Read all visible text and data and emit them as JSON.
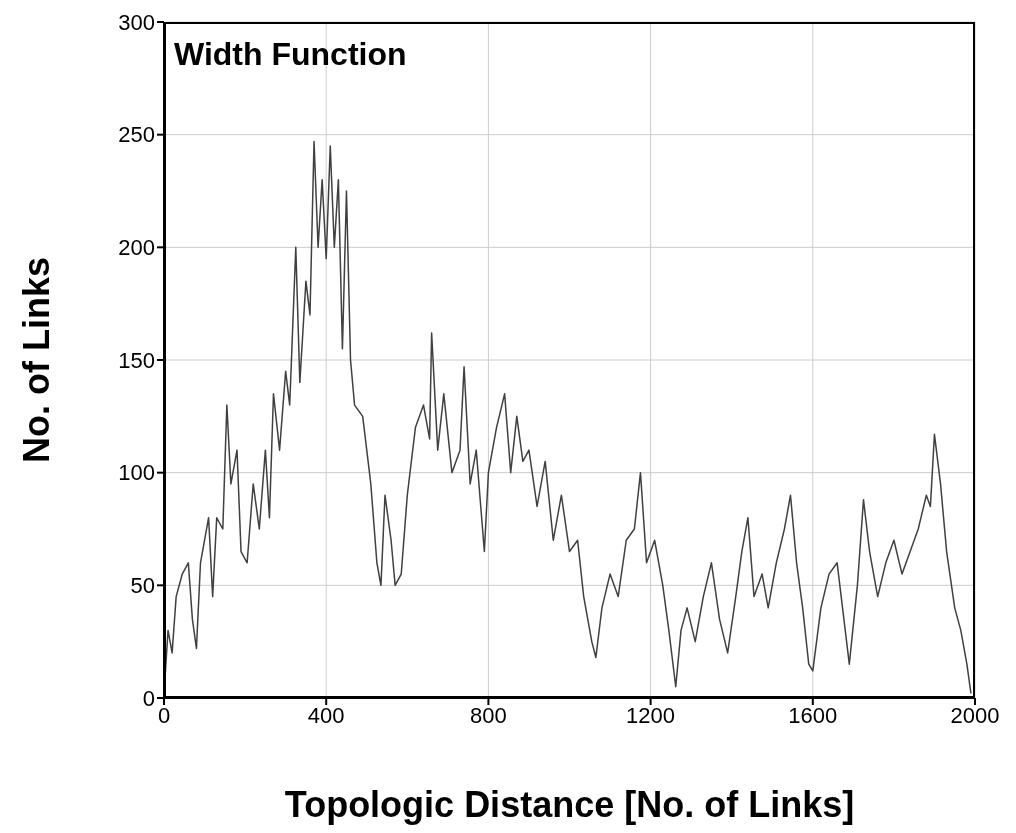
{
  "chart_data": {
    "type": "line",
    "title": "Width Function",
    "xlabel": "Topologic Distance [No. of Links]",
    "ylabel": "No. of Links",
    "xlim": [
      0,
      2000
    ],
    "ylim": [
      0,
      300
    ],
    "xticks": [
      0,
      400,
      800,
      1200,
      1600,
      2000
    ],
    "yticks": [
      0,
      50,
      100,
      150,
      200,
      250,
      300
    ],
    "grid": true,
    "legend": false,
    "marker": "none",
    "line_style": "solid",
    "x": [
      0,
      10,
      20,
      30,
      45,
      60,
      70,
      80,
      90,
      110,
      120,
      130,
      145,
      155,
      165,
      180,
      190,
      205,
      220,
      235,
      250,
      260,
      270,
      285,
      300,
      310,
      325,
      335,
      350,
      360,
      370,
      380,
      390,
      400,
      410,
      420,
      430,
      440,
      450,
      460,
      470,
      490,
      510,
      525,
      535,
      545,
      560,
      570,
      585,
      600,
      620,
      640,
      655,
      660,
      675,
      690,
      710,
      730,
      740,
      755,
      770,
      790,
      800,
      820,
      840,
      855,
      870,
      885,
      900,
      920,
      940,
      960,
      980,
      1000,
      1020,
      1035,
      1055,
      1065,
      1080,
      1100,
      1120,
      1140,
      1160,
      1175,
      1190,
      1210,
      1230,
      1245,
      1262,
      1275,
      1290,
      1310,
      1330,
      1350,
      1370,
      1390,
      1410,
      1425,
      1440,
      1455,
      1475,
      1490,
      1510,
      1530,
      1545,
      1560,
      1575,
      1590,
      1600,
      1620,
      1640,
      1660,
      1680,
      1690,
      1710,
      1725,
      1740,
      1760,
      1780,
      1800,
      1820,
      1840,
      1860,
      1880,
      1890,
      1900,
      1915,
      1930,
      1950,
      1965,
      1980,
      1990
    ],
    "series": [
      {
        "color": "#404040",
        "values": [
          2,
          30,
          20,
          45,
          55,
          60,
          35,
          22,
          60,
          80,
          45,
          80,
          75,
          130,
          95,
          110,
          65,
          60,
          95,
          75,
          110,
          80,
          135,
          110,
          145,
          130,
          200,
          140,
          185,
          170,
          247,
          200,
          230,
          195,
          245,
          200,
          230,
          155,
          225,
          150,
          130,
          125,
          95,
          60,
          50,
          90,
          70,
          50,
          55,
          90,
          120,
          130,
          115,
          162,
          110,
          135,
          100,
          110,
          147,
          95,
          110,
          65,
          100,
          120,
          135,
          100,
          125,
          105,
          110,
          85,
          105,
          70,
          90,
          65,
          70,
          45,
          25,
          18,
          40,
          55,
          45,
          70,
          75,
          100,
          60,
          70,
          50,
          30,
          5,
          30,
          40,
          25,
          45,
          60,
          35,
          20,
          45,
          65,
          80,
          45,
          55,
          40,
          60,
          75,
          90,
          60,
          40,
          15,
          12,
          40,
          55,
          60,
          30,
          15,
          50,
          88,
          65,
          45,
          60,
          70,
          55,
          65,
          75,
          90,
          85,
          117,
          95,
          65,
          40,
          30,
          15,
          2
        ]
      }
    ]
  }
}
